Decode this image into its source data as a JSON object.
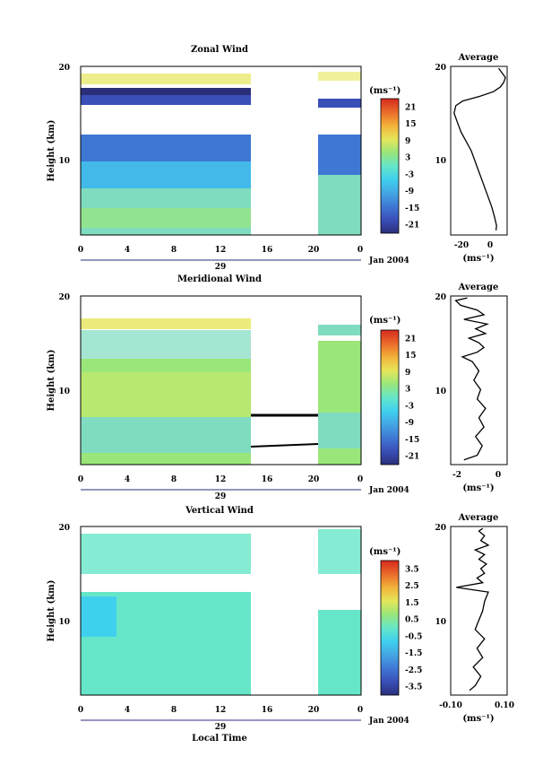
{
  "units_label": "(ms⁻¹)",
  "date_label": "Jan 2004",
  "day_label": "29",
  "xlabel": "Local Time",
  "colors": {
    "palette": [
      "#2b2f7a",
      "#3a4fb8",
      "#3f78d4",
      "#44a6e4",
      "#3fd0ee",
      "#66e6c8",
      "#9ae67a",
      "#e6e65a",
      "#f2b23a",
      "#ea6a2a",
      "#d62a1e"
    ]
  },
  "chart_data": [
    {
      "type": "heatmap",
      "title": "Zonal Wind",
      "ylabel": "Height (km)",
      "x_ticks": [
        "0",
        "4",
        "8",
        "12",
        "16",
        "20",
        "0"
      ],
      "y_ticks": [
        "10",
        "20"
      ],
      "ylim": [
        2,
        20
      ],
      "xlim": [
        0,
        24
      ],
      "data_gap_hours": [
        14.5,
        20.3
      ],
      "colorbar_ticks": [
        "21",
        "15",
        "9",
        "3",
        "-3",
        "-9",
        "-15",
        "-21"
      ],
      "colorbar_range": [
        -24,
        24
      ],
      "profile": {
        "title": "Average",
        "x_ticks": [
          "-20",
          "0"
        ],
        "xlim": [
          -25,
          8
        ],
        "x_units": "(ms⁻¹)",
        "height_km": [
          2.5,
          3,
          4,
          5,
          6,
          7,
          8,
          9,
          10,
          11,
          12,
          13,
          14,
          15,
          15.8,
          16.3,
          16.8,
          17.3,
          17.8,
          18.3,
          18.8,
          19.3,
          19.8
        ],
        "value": [
          1.5,
          1.8,
          0.5,
          -1,
          -3,
          -5,
          -7,
          -9,
          -11,
          -13,
          -16,
          -19,
          -21,
          -23,
          -22,
          -18,
          -8,
          0,
          4,
          6,
          7,
          5,
          3
        ]
      }
    },
    {
      "type": "heatmap",
      "title": "Meridional Wind",
      "ylabel": "Height (km)",
      "x_ticks": [
        "0",
        "4",
        "8",
        "12",
        "16",
        "20",
        "0"
      ],
      "y_ticks": [
        "10",
        "20"
      ],
      "ylim": [
        2,
        20
      ],
      "xlim": [
        0,
        24
      ],
      "data_gap_hours": [
        14.5,
        20.3
      ],
      "colorbar_ticks": [
        "21",
        "15",
        "9",
        "3",
        "-3",
        "-9",
        "-15",
        "-21"
      ],
      "colorbar_range": [
        -24,
        24
      ],
      "profile": {
        "title": "Average",
        "x_ticks": [
          "-2",
          "0"
        ],
        "xlim": [
          -2.6,
          0.8
        ],
        "x_units": "(ms⁻¹)",
        "height_km": [
          2.5,
          3,
          4,
          5,
          6,
          7,
          8,
          9,
          10,
          11,
          12,
          13,
          13.5,
          14,
          14.5,
          15,
          15.5,
          16,
          16.5,
          17,
          17.5,
          18,
          18.5,
          19,
          19.5,
          19.8
        ],
        "value": [
          -1.8,
          -1.0,
          -0.7,
          -1.1,
          -0.6,
          -0.9,
          -0.5,
          -1.0,
          -0.8,
          -1.2,
          -0.9,
          -1.3,
          -1.9,
          -1.0,
          -0.6,
          -0.9,
          -1.5,
          -0.5,
          -1.1,
          -0.4,
          -1.8,
          -0.6,
          -1.0,
          -2.0,
          -2.3,
          -1.6
        ]
      }
    },
    {
      "type": "heatmap",
      "title": "Vertical Wind",
      "ylabel": "Height (km)",
      "x_ticks": [
        "0",
        "4",
        "8",
        "12",
        "16",
        "20",
        "0"
      ],
      "y_ticks": [
        "10",
        "20"
      ],
      "ylim": [
        2,
        20
      ],
      "xlim": [
        0,
        24
      ],
      "data_gap_hours": [
        14.5,
        20.3
      ],
      "colorbar_ticks": [
        "3.5",
        "2.5",
        "1.5",
        "0.5",
        "-0.5",
        "-1.5",
        "-2.5",
        "-3.5"
      ],
      "colorbar_range": [
        -4,
        4
      ],
      "profile": {
        "title": "Average",
        "x_ticks": [
          "-0.10",
          "0.10"
        ],
        "xlim": [
          -0.15,
          0.15
        ],
        "x_units": "(ms⁻¹)",
        "height_km": [
          2.5,
          3,
          4,
          5,
          6,
          7,
          8,
          9,
          10,
          11,
          12,
          13,
          13.5,
          14,
          14.5,
          15,
          15.5,
          16,
          16.5,
          17,
          17.5,
          18,
          18.5,
          19,
          19.5,
          19.8
        ],
        "value": [
          -0.05,
          -0.02,
          0.01,
          -0.03,
          0.02,
          -0.01,
          0.03,
          -0.02,
          0.0,
          0.02,
          0.03,
          0.05,
          -0.12,
          0.02,
          -0.01,
          0.03,
          0.01,
          0.04,
          0.0,
          0.03,
          -0.02,
          0.05,
          0.01,
          0.03,
          0.0,
          0.02
        ]
      }
    }
  ]
}
